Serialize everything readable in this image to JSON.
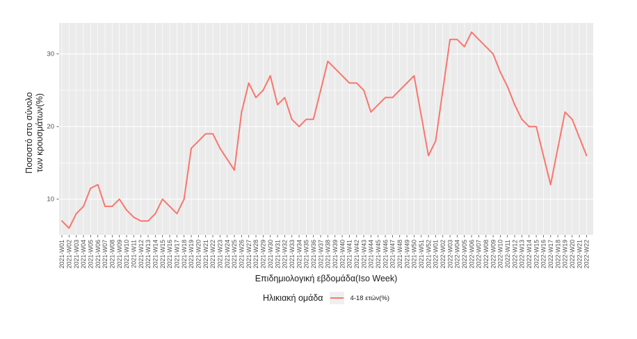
{
  "chart_data": {
    "type": "line",
    "title": "",
    "xlabel": "Επιδημιολογική εβδομάδα(Iso Week)",
    "ylabel": "Ποσοστό στο σύνολο των κρουσμάτων(%)",
    "ylabel_lines": [
      "Ποσοστό στο σύνολο",
      "των κρουσμάτων(%)"
    ],
    "legend_title": "Ηλικιακή ομάδα",
    "legend_position": "bottom",
    "grid": true,
    "ylim": [
      5,
      34
    ],
    "y_ticks": [
      10,
      20,
      30
    ],
    "y_minor_ticks": [
      15,
      25
    ],
    "categories": [
      "2021-W01",
      "2021-W02",
      "2021-W03",
      "2021-W04",
      "2021-W05",
      "2021-W06",
      "2021-W07",
      "2021-W08",
      "2021-W09",
      "2021-W10",
      "2021-W11",
      "2021-W12",
      "2021-W13",
      "2021-W14",
      "2021-W15",
      "2021-W16",
      "2021-W17",
      "2021-W18",
      "2021-W19",
      "2021-W20",
      "2021-W21",
      "2021-W22",
      "2021-W23",
      "2021-W24",
      "2021-W25",
      "2021-W26",
      "2021-W27",
      "2021-W28",
      "2021-W29",
      "2021-W30",
      "2021-W31",
      "2021-W32",
      "2021-W33",
      "2021-W34",
      "2021-W35",
      "2021-W36",
      "2021-W37",
      "2021-W38",
      "2021-W39",
      "2021-W40",
      "2021-W41",
      "2021-W42",
      "2021-W43",
      "2021-W44",
      "2021-W45",
      "2021-W46",
      "2021-W47",
      "2021-W48",
      "2021-W49",
      "2021-W50",
      "2021-W51",
      "2021-W52",
      "2022-W01",
      "2022-W02",
      "2022-W03",
      "2022-W04",
      "2022-W05",
      "2022-W06",
      "2022-W07",
      "2022-W08",
      "2022-W09",
      "2022-W10",
      "2022-W11",
      "2022-W12",
      "2022-W13",
      "2022-W14",
      "2022-W15",
      "2022-W16",
      "2022-W17",
      "2022-W18",
      "2022-W19",
      "2022-W20",
      "2022-W21",
      "2022-W22"
    ],
    "series": [
      {
        "name": "4-18 ετών(%)",
        "color": "#F8766D",
        "values": [
          7,
          6,
          8,
          9,
          11.5,
          12,
          9,
          9,
          10,
          8.5,
          7.5,
          7,
          7,
          8,
          10,
          9,
          8,
          10,
          17,
          18,
          19,
          19,
          17,
          15.5,
          14,
          22,
          26,
          24,
          25,
          27,
          23,
          24,
          21,
          20,
          21,
          21,
          25,
          29,
          28,
          27,
          26,
          26,
          25,
          22,
          23,
          24,
          24,
          25,
          26,
          27,
          21.5,
          16,
          18,
          25,
          32,
          32,
          31,
          33,
          32,
          31,
          30,
          27.5,
          25.5,
          23,
          21,
          20,
          20,
          16,
          12,
          17,
          22,
          21,
          18.5,
          16
        ]
      }
    ],
    "style": {
      "panel_bg": "#EBEBEB",
      "gridline_color": "#FFFFFF",
      "tick_mark_color": "#333333",
      "axis_text_color": "#4D4D4D",
      "axis_title_color": "#1A1A1A",
      "legend_key_bg": "#F0F0F0"
    }
  }
}
